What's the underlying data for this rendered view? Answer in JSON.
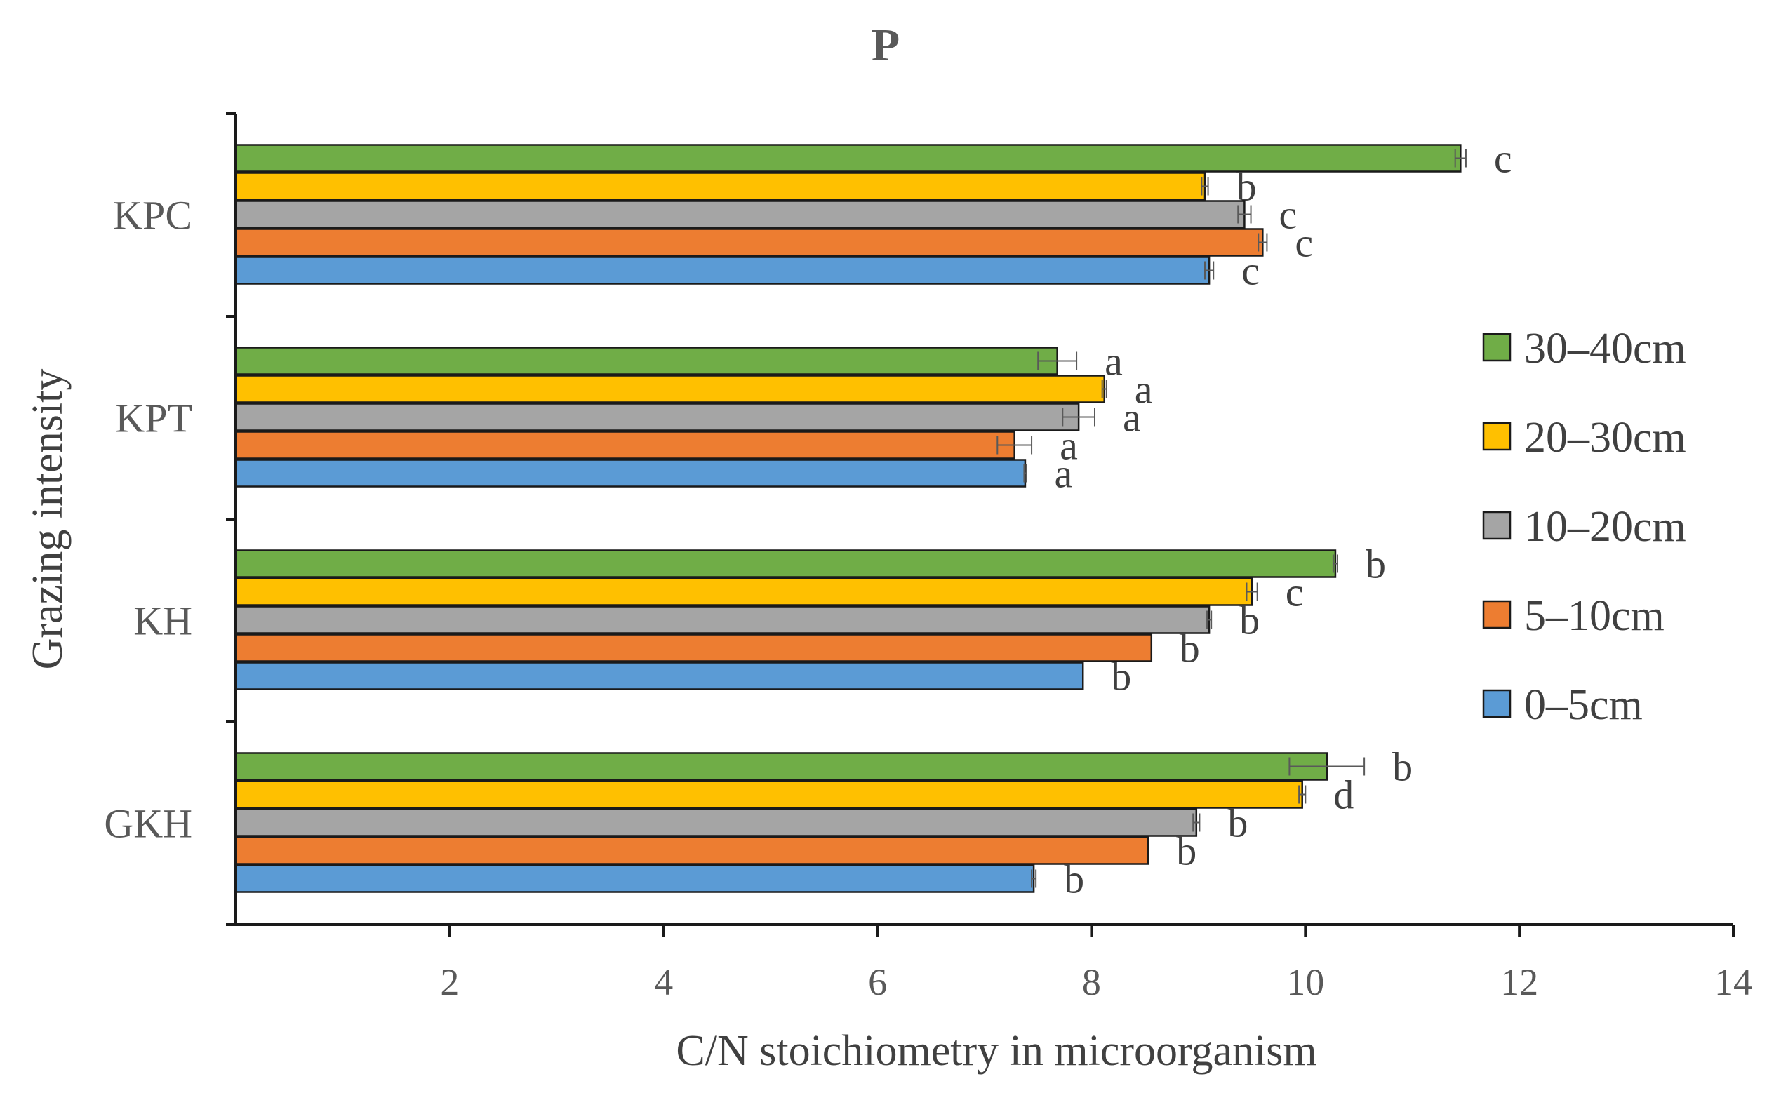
{
  "chart_data": {
    "type": "bar",
    "orientation": "horizontal",
    "title": "P",
    "xlabel": "C/N stoichiometry in microorganism",
    "ylabel": "Grazing intensity",
    "xlim": [
      0,
      14
    ],
    "xticks": [
      "2",
      "4",
      "6",
      "8",
      "10",
      "12",
      "14"
    ],
    "categories": [
      "KPC",
      "KPT",
      "KH",
      "GKH"
    ],
    "series": [
      {
        "name": "30–40cm",
        "color": "#70AD47",
        "values": [
          11.45,
          7.68,
          10.28,
          10.2
        ],
        "errors": [
          0.05,
          0.18,
          0.02,
          0.35
        ],
        "letters": [
          "c",
          "a",
          "b",
          "b"
        ]
      },
      {
        "name": "20–30cm",
        "color": "#FFC000",
        "values": [
          9.06,
          8.12,
          9.5,
          9.97
        ],
        "errors": [
          0.03,
          0.02,
          0.05,
          0.03
        ],
        "letters": [
          "b",
          "a",
          "c",
          "d"
        ]
      },
      {
        "name": "10–20cm",
        "color": "#A5A5A5",
        "values": [
          9.43,
          7.88,
          9.1,
          8.98
        ],
        "errors": [
          0.06,
          0.15,
          0.02,
          0.03
        ],
        "letters": [
          "c",
          "a",
          "b",
          "b"
        ]
      },
      {
        "name": "5–10cm",
        "color": "#ED7D31",
        "values": [
          9.6,
          7.28,
          8.56,
          8.53
        ],
        "errors": [
          0.04,
          0.16,
          0.0,
          0.0
        ],
        "letters": [
          "c",
          "a",
          "b",
          "b"
        ]
      },
      {
        "name": "0–5cm",
        "color": "#5B9BD5",
        "values": [
          9.1,
          7.38,
          7.92,
          7.46
        ],
        "errors": [
          0.04,
          0.01,
          0.0,
          0.02
        ],
        "letters": [
          "c",
          "a",
          "b",
          "b"
        ]
      }
    ],
    "legend_order": [
      "30–40cm",
      "20–30cm",
      "10–20cm",
      "5–10cm",
      "0–5cm"
    ],
    "legend_position": "right"
  }
}
